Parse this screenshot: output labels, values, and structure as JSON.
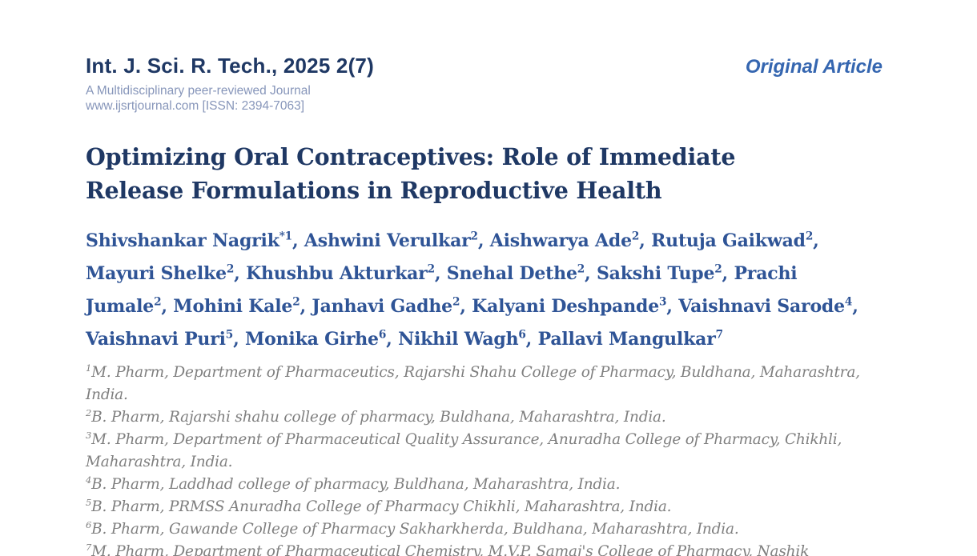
{
  "header": {
    "journal_name": "Int. J. Sci. R. Tech., 2025 2(7)",
    "tagline": "A Multidisciplinary peer-reviewed Journal",
    "website_issn": "www.ijsrtjournal.com [ISSN: 2394-7063]",
    "article_type": "Original Article"
  },
  "article": {
    "title": "Optimizing Oral Contraceptives: Role of Immediate Release Formulations in Reproductive Health",
    "authors": [
      {
        "name": "Shivshankar Nagrik",
        "marker": "*1"
      },
      {
        "name": "Ashwini Verulkar",
        "marker": "2"
      },
      {
        "name": "Aishwarya Ade",
        "marker": "2"
      },
      {
        "name": "Rutuja Gaikwad",
        "marker": "2"
      },
      {
        "name": "Mayuri Shelke",
        "marker": "2"
      },
      {
        "name": "Khushbu Akturkar",
        "marker": "2"
      },
      {
        "name": "Snehal Dethe",
        "marker": "2"
      },
      {
        "name": "Sakshi Tupe",
        "marker": "2"
      },
      {
        "name": "Prachi Jumale",
        "marker": "2"
      },
      {
        "name": "Mohini Kale",
        "marker": "2"
      },
      {
        "name": "Janhavi Gadhe",
        "marker": "2"
      },
      {
        "name": "Kalyani Deshpande",
        "marker": "3"
      },
      {
        "name": "Vaishnavi Sarode",
        "marker": "4"
      },
      {
        "name": "Vaishnavi Puri",
        "marker": "5"
      },
      {
        "name": "Monika Girhe",
        "marker": "6"
      },
      {
        "name": "Nikhil Wagh",
        "marker": "6"
      },
      {
        "name": "Pallavi Mangulkar",
        "marker": "7"
      }
    ],
    "affiliations": [
      {
        "marker": "1",
        "text": "M. Pharm, Department of Pharmaceutics, Rajarshi Shahu College of Pharmacy, Buldhana, Maharashtra, India."
      },
      {
        "marker": "2",
        "text": "B. Pharm, Rajarshi shahu college of pharmacy, Buldhana, Maharashtra, India."
      },
      {
        "marker": "3",
        "text": "M. Pharm, Department of Pharmaceutical Quality Assurance, Anuradha College of Pharmacy, Chikhli, Maharashtra, India."
      },
      {
        "marker": "4",
        "text": "B. Pharm, Laddhad college of pharmacy, Buldhana, Maharashtra, India."
      },
      {
        "marker": "5",
        "text": "B. Pharm, PRMSS Anuradha College of Pharmacy Chikhli, Maharashtra, India."
      },
      {
        "marker": "6",
        "text": "B. Pharm, Gawande College of Pharmacy Sakharkherda, Buldhana, Maharashtra, India."
      },
      {
        "marker": "7",
        "text": "M. Pharm, Department of Pharmaceutical Chemistry, M.V.P. Samaj's College of Pharmacy, Nashik"
      }
    ]
  },
  "colors": {
    "navy": "#1F3864",
    "author_blue": "#2F5496",
    "article_type_blue": "#3566B0",
    "tagline_blue": "#8796BA",
    "affiliation_gray": "#7F7F7F"
  }
}
